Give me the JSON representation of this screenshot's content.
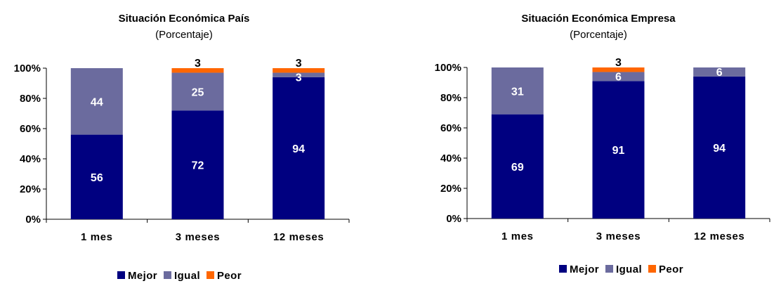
{
  "chart_data": [
    {
      "type": "bar",
      "stacked": true,
      "title": "Situación Económica País",
      "subtitle": "(Porcentaje)",
      "categories": [
        "1 mes",
        "3 meses",
        "12 meses"
      ],
      "ylim": [
        0,
        100
      ],
      "yticks": [
        "0%",
        "20%",
        "40%",
        "60%",
        "80%",
        "100%"
      ],
      "grid": false,
      "legend_position": "bottom",
      "series": [
        {
          "name": "Mejor",
          "color": "#000080",
          "values": [
            56,
            72,
            94
          ],
          "labels": [
            "56",
            "72",
            "94"
          ]
        },
        {
          "name": "Igual",
          "color": "#6B6B9E",
          "values": [
            44,
            25,
            3
          ],
          "labels": [
            "44",
            "25",
            "3"
          ]
        },
        {
          "name": "Peor",
          "color": "#FF6600",
          "values": [
            0,
            3,
            3
          ],
          "labels": [
            "",
            "3",
            "3"
          ]
        }
      ]
    },
    {
      "type": "bar",
      "stacked": true,
      "title": "Situación Económica Empresa",
      "subtitle": "(Porcentaje)",
      "categories": [
        "1 mes",
        "3 meses",
        "12 meses"
      ],
      "ylim": [
        0,
        100
      ],
      "yticks": [
        "0%",
        "20%",
        "40%",
        "60%",
        "80%",
        "100%"
      ],
      "grid": false,
      "legend_position": "bottom",
      "series": [
        {
          "name": "Mejor",
          "color": "#000080",
          "values": [
            69,
            91,
            94
          ],
          "labels": [
            "69",
            "91",
            "94"
          ]
        },
        {
          "name": "Igual",
          "color": "#6B6B9E",
          "values": [
            31,
            6,
            6
          ],
          "labels": [
            "31",
            "6",
            "6"
          ]
        },
        {
          "name": "Peor",
          "color": "#FF6600",
          "values": [
            0,
            3,
            0
          ],
          "labels": [
            "",
            "3",
            ""
          ]
        }
      ]
    }
  ]
}
